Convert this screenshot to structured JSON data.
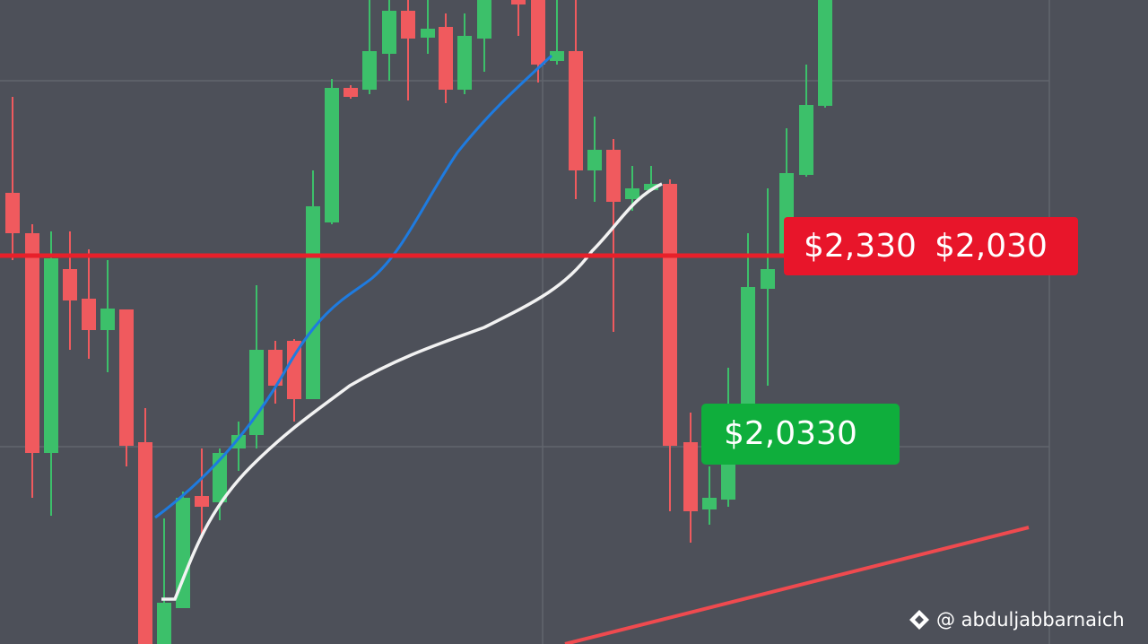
{
  "price_tags": {
    "line_tag_left": "$2,330",
    "line_tag_right": "$2,030",
    "support_tag": "$2,0330"
  },
  "watermark": "@ abduljabbarnaich"
}
